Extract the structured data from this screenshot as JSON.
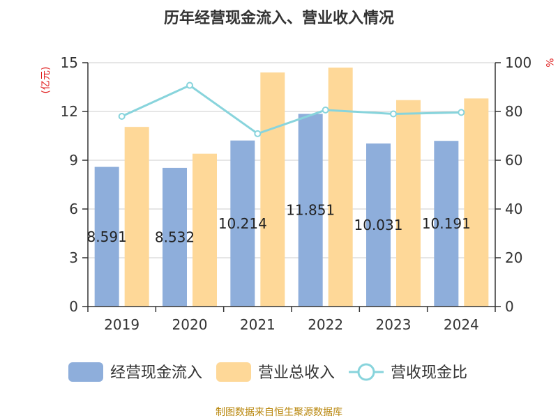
{
  "chart_data": {
    "type": "bar",
    "title": "历年经营现金流入、营业收入情况",
    "categories": [
      "2019",
      "2020",
      "2021",
      "2022",
      "2023",
      "2024"
    ],
    "series": [
      {
        "name": "经营现金流入",
        "axis": "left",
        "type": "bar",
        "color": "#8eaedb",
        "values": [
          8.591,
          8.532,
          10.214,
          11.851,
          10.031,
          10.191
        ],
        "labels": [
          "8.591",
          "8.532",
          "10.214",
          "11.851",
          "10.031",
          "10.191"
        ]
      },
      {
        "name": "营业总收入",
        "axis": "left",
        "type": "bar",
        "color": "#fed898",
        "values": [
          11.05,
          9.4,
          14.4,
          14.7,
          12.7,
          12.8
        ]
      },
      {
        "name": "营收现金比",
        "axis": "right",
        "type": "line",
        "color": "#88d4dc",
        "values": [
          78,
          90.7,
          70.9,
          80.6,
          79,
          79.6
        ]
      }
    ],
    "y_left": {
      "unit": "(亿元)",
      "ylim": [
        0,
        15
      ],
      "ticks": [
        "0",
        "3",
        "6",
        "9",
        "12",
        "15"
      ]
    },
    "y_right": {
      "unit": "%",
      "ylim": [
        0,
        100
      ],
      "ticks": [
        "0",
        "20",
        "40",
        "60",
        "80",
        "100"
      ]
    },
    "grid": true,
    "legend_position": "bottom"
  },
  "footer": {
    "source": "制图数据来自恒生聚源数据库"
  }
}
